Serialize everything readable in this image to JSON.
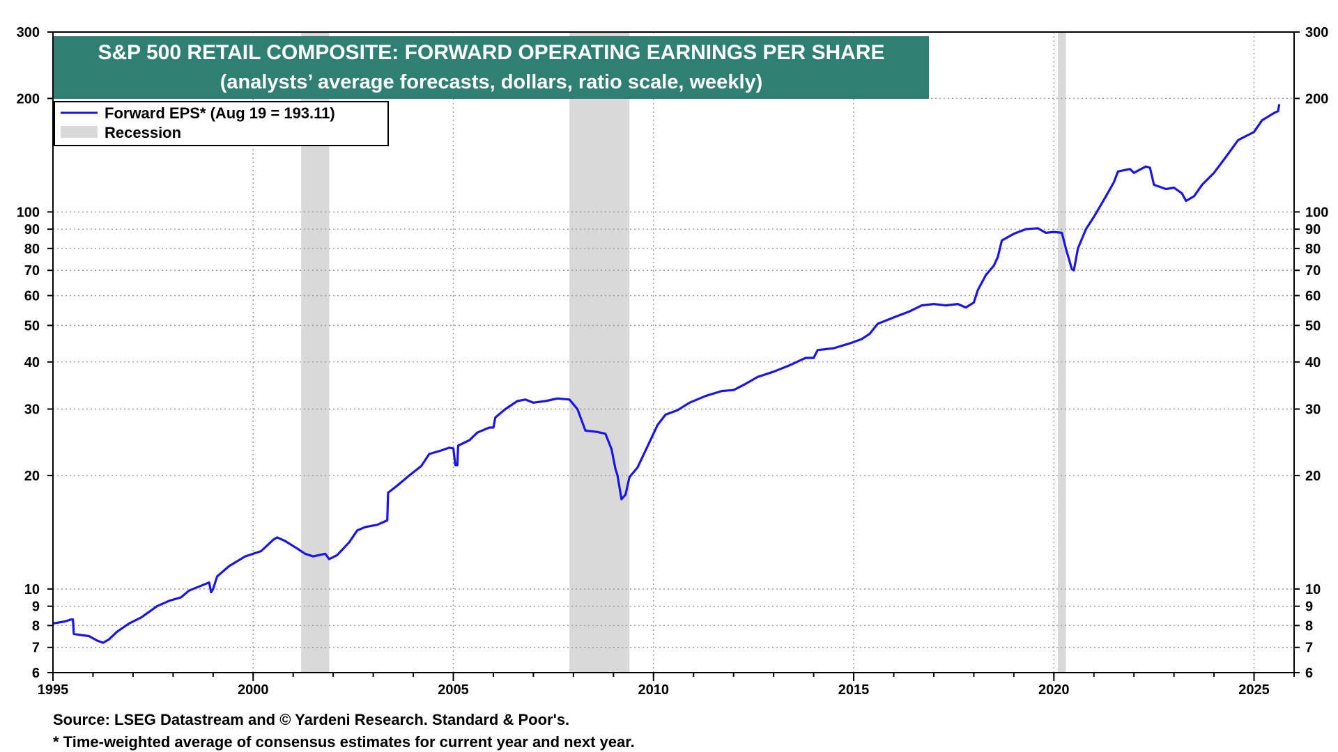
{
  "colors": {
    "series": "#1a14e6",
    "recession": "#d9d9d9",
    "title_bg": "#2f7f73",
    "title_text": "#ffffff",
    "grid": "#9a9a9a"
  },
  "chart_data": {
    "type": "line",
    "title": "S&P 500 RETAIL COMPOSITE: FORWARD OPERATING EARNINGS PER SHARE",
    "subtitle": "(analysts’ average forecasts, dollars, ratio scale, weekly)",
    "xlabel": "",
    "ylabel": "",
    "scale": "log",
    "xlim": [
      1995,
      2026
    ],
    "ylim": [
      6,
      300
    ],
    "grid": true,
    "legend_position": "top-left",
    "x_ticks": [
      "1995",
      "2000",
      "2005",
      "2010",
      "2015",
      "2020",
      "2025"
    ],
    "y_ticks": [
      "6",
      "7",
      "8",
      "9",
      "10",
      "20",
      "30",
      "40",
      "50",
      "60",
      "70",
      "80",
      "90",
      "100",
      "200",
      "300"
    ],
    "recessions": [
      [
        2001.2,
        2001.9
      ],
      [
        2007.9,
        2009.4
      ],
      [
        2020.1,
        2020.3
      ]
    ],
    "legend": {
      "series_label": "Forward EPS* (Aug 19 = 193.11)",
      "recession_label": "Recession"
    },
    "series": [
      {
        "name": "Forward EPS*",
        "points": [
          [
            1995.0,
            8.1
          ],
          [
            1995.3,
            8.2
          ],
          [
            1995.45,
            8.3
          ],
          [
            1995.5,
            8.3
          ],
          [
            1995.52,
            7.6
          ],
          [
            1995.7,
            7.55
          ],
          [
            1995.9,
            7.5
          ],
          [
            1996.1,
            7.3
          ],
          [
            1996.25,
            7.2
          ],
          [
            1996.4,
            7.35
          ],
          [
            1996.6,
            7.7
          ],
          [
            1996.9,
            8.1
          ],
          [
            1997.2,
            8.4
          ],
          [
            1997.6,
            9.0
          ],
          [
            1997.9,
            9.3
          ],
          [
            1998.2,
            9.5
          ],
          [
            1998.4,
            9.9
          ],
          [
            1998.7,
            10.2
          ],
          [
            1998.9,
            10.4
          ],
          [
            1998.95,
            9.8
          ],
          [
            1999.0,
            10.0
          ],
          [
            1999.1,
            10.8
          ],
          [
            1999.4,
            11.5
          ],
          [
            1999.8,
            12.2
          ],
          [
            2000.2,
            12.6
          ],
          [
            2000.5,
            13.5
          ],
          [
            2000.6,
            13.7
          ],
          [
            2000.8,
            13.4
          ],
          [
            2001.1,
            12.8
          ],
          [
            2001.3,
            12.4
          ],
          [
            2001.5,
            12.2
          ],
          [
            2001.8,
            12.4
          ],
          [
            2001.9,
            12.0
          ],
          [
            2002.1,
            12.3
          ],
          [
            2002.4,
            13.3
          ],
          [
            2002.6,
            14.3
          ],
          [
            2002.8,
            14.6
          ],
          [
            2003.1,
            14.8
          ],
          [
            2003.35,
            15.2
          ],
          [
            2003.37,
            18.0
          ],
          [
            2003.6,
            18.8
          ],
          [
            2003.9,
            20.0
          ],
          [
            2004.2,
            21.2
          ],
          [
            2004.4,
            22.8
          ],
          [
            2004.7,
            23.3
          ],
          [
            2004.9,
            23.7
          ],
          [
            2005.0,
            23.6
          ],
          [
            2005.05,
            21.3
          ],
          [
            2005.1,
            21.3
          ],
          [
            2005.12,
            24.0
          ],
          [
            2005.4,
            24.8
          ],
          [
            2005.6,
            26.0
          ],
          [
            2005.9,
            26.8
          ],
          [
            2006.0,
            26.8
          ],
          [
            2006.05,
            28.5
          ],
          [
            2006.3,
            30.0
          ],
          [
            2006.6,
            31.5
          ],
          [
            2006.8,
            31.8
          ],
          [
            2007.0,
            31.2
          ],
          [
            2007.3,
            31.5
          ],
          [
            2007.6,
            32.0
          ],
          [
            2007.9,
            31.8
          ],
          [
            2008.1,
            30.0
          ],
          [
            2008.3,
            26.3
          ],
          [
            2008.6,
            26.1
          ],
          [
            2008.8,
            25.8
          ],
          [
            2008.95,
            23.5
          ],
          [
            2009.05,
            20.8
          ],
          [
            2009.1,
            20.0
          ],
          [
            2009.2,
            17.3
          ],
          [
            2009.3,
            17.8
          ],
          [
            2009.4,
            19.8
          ],
          [
            2009.6,
            21.0
          ],
          [
            2009.9,
            24.5
          ],
          [
            2010.1,
            27.2
          ],
          [
            2010.3,
            29.0
          ],
          [
            2010.6,
            29.8
          ],
          [
            2010.9,
            31.2
          ],
          [
            2011.3,
            32.5
          ],
          [
            2011.7,
            33.5
          ],
          [
            2012.0,
            33.7
          ],
          [
            2012.3,
            35.0
          ],
          [
            2012.6,
            36.5
          ],
          [
            2013.0,
            37.7
          ],
          [
            2013.4,
            39.2
          ],
          [
            2013.8,
            41.0
          ],
          [
            2014.0,
            41.0
          ],
          [
            2014.1,
            43.0
          ],
          [
            2014.5,
            43.5
          ],
          [
            2014.9,
            44.8
          ],
          [
            2015.2,
            46.0
          ],
          [
            2015.4,
            47.5
          ],
          [
            2015.6,
            50.5
          ],
          [
            2016.0,
            52.5
          ],
          [
            2016.4,
            54.5
          ],
          [
            2016.7,
            56.5
          ],
          [
            2017.0,
            57.0
          ],
          [
            2017.3,
            56.5
          ],
          [
            2017.6,
            57.0
          ],
          [
            2017.8,
            55.8
          ],
          [
            2018.0,
            57.5
          ],
          [
            2018.1,
            62.0
          ],
          [
            2018.3,
            68.0
          ],
          [
            2018.5,
            72.0
          ],
          [
            2018.6,
            76.0
          ],
          [
            2018.7,
            84.0
          ],
          [
            2019.0,
            87.5
          ],
          [
            2019.3,
            90.0
          ],
          [
            2019.6,
            90.5
          ],
          [
            2019.8,
            88.0
          ],
          [
            2020.0,
            88.5
          ],
          [
            2020.2,
            88.0
          ],
          [
            2020.3,
            80.0
          ],
          [
            2020.45,
            70.5
          ],
          [
            2020.5,
            70.0
          ],
          [
            2020.6,
            80.0
          ],
          [
            2020.8,
            90.0
          ],
          [
            2021.0,
            97.0
          ],
          [
            2021.3,
            110.0
          ],
          [
            2021.5,
            120.0
          ],
          [
            2021.6,
            128.0
          ],
          [
            2021.9,
            130.0
          ],
          [
            2022.0,
            127.0
          ],
          [
            2022.3,
            132.0
          ],
          [
            2022.4,
            131.0
          ],
          [
            2022.5,
            118.0
          ],
          [
            2022.8,
            115.0
          ],
          [
            2023.0,
            116.0
          ],
          [
            2023.2,
            112.0
          ],
          [
            2023.3,
            107.0
          ],
          [
            2023.5,
            110.0
          ],
          [
            2023.7,
            118.0
          ],
          [
            2024.0,
            127.0
          ],
          [
            2024.3,
            140.0
          ],
          [
            2024.6,
            155.0
          ],
          [
            2025.0,
            163.0
          ],
          [
            2025.2,
            175.0
          ],
          [
            2025.5,
            183.0
          ],
          [
            2025.6,
            185.0
          ],
          [
            2025.63,
            193.11
          ]
        ]
      }
    ],
    "footnotes": [
      "Source: LSEG Datastream and © Yardeni Research. Standard & Poor's.",
      "* Time-weighted average of consensus estimates for current year and next year."
    ]
  }
}
